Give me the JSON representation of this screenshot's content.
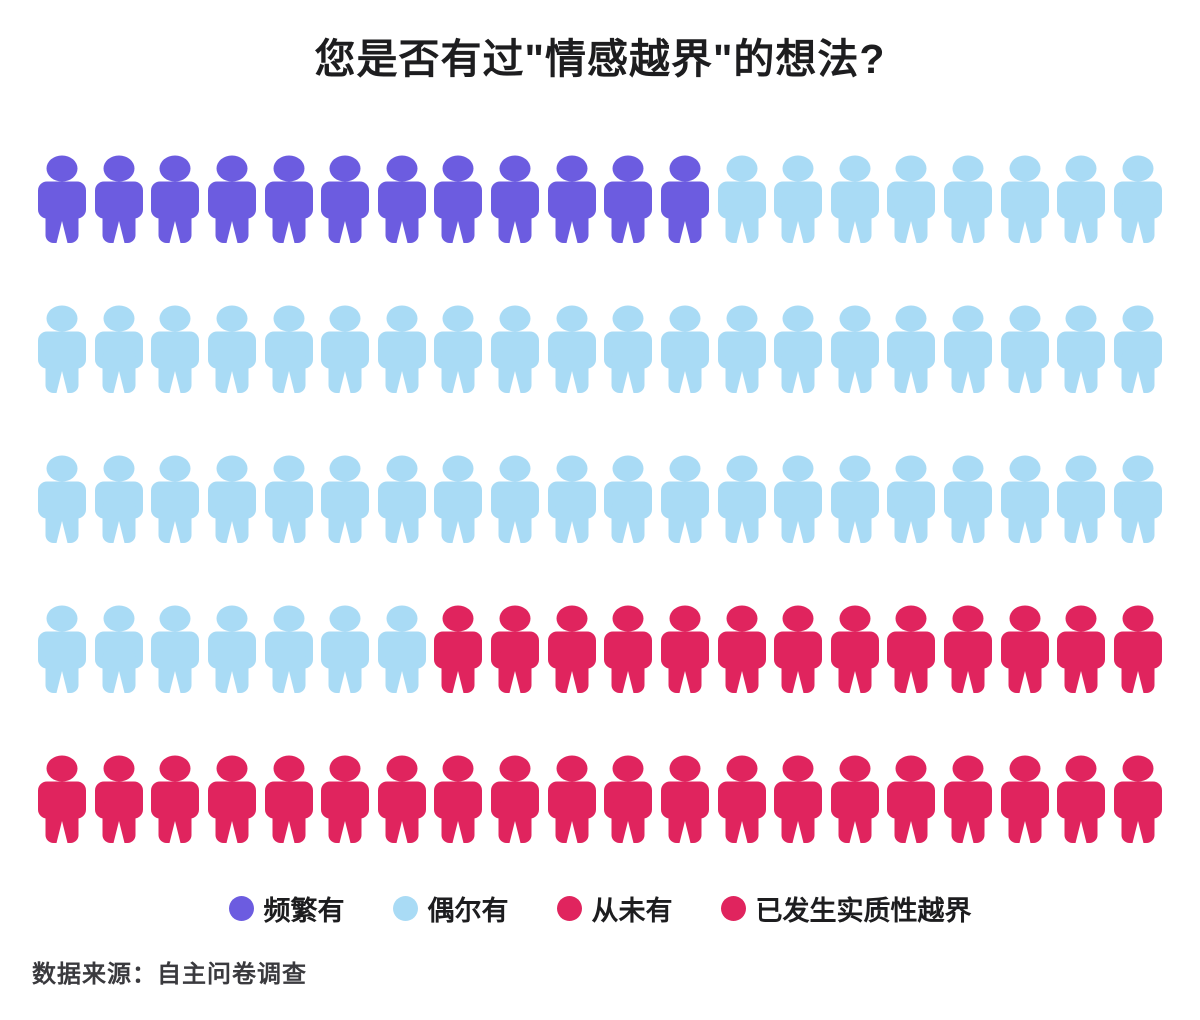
{
  "title": "您是否有过\"情感越界\"的想法?",
  "source": "数据来源：自主问卷调查",
  "colors": {
    "frequent": "#6C5CE0",
    "occasional": "#A9DBF5",
    "never": "#E0245E",
    "crossed": "#E0245E",
    "title_text": "#1d1d1f",
    "source_text": "#3a3a3e",
    "background": "#ffffff"
  },
  "legend": [
    {
      "id": "frequent",
      "label": "频繁有",
      "color": "#6C5CE0"
    },
    {
      "id": "occasional",
      "label": "偶尔有",
      "color": "#A9DBF5"
    },
    {
      "id": "never",
      "label": "从未有",
      "color": "#E0245E"
    },
    {
      "id": "crossed",
      "label": "已发生实质性越界",
      "color": "#E0245E"
    }
  ],
  "chart_data": {
    "type": "pictogram",
    "title": "您是否有过\"情感越界\"的想法?",
    "icon": "person",
    "grid": {
      "rows": 5,
      "cols": 20,
      "total_icons": 100
    },
    "rows": [
      [
        {
          "color_id": "frequent",
          "count": 12
        },
        {
          "color_id": "occasional",
          "count": 8
        }
      ],
      [
        {
          "color_id": "occasional",
          "count": 20
        }
      ],
      [
        {
          "color_id": "occasional",
          "count": 20
        }
      ],
      [
        {
          "color_id": "occasional",
          "count": 7
        },
        {
          "color_id": "never",
          "count": 13
        }
      ],
      [
        {
          "color_id": "never",
          "count": 20
        }
      ]
    ],
    "icon_totals_by_color": {
      "purple_frequent": 12,
      "lightblue_occasional": 55,
      "crimson_combined": 33
    },
    "legend_entries": [
      "频繁有",
      "偶尔有",
      "从未有",
      "已发生实质性越界"
    ],
    "legend_position": "bottom",
    "source": "数据来源：自主问卷调查"
  }
}
